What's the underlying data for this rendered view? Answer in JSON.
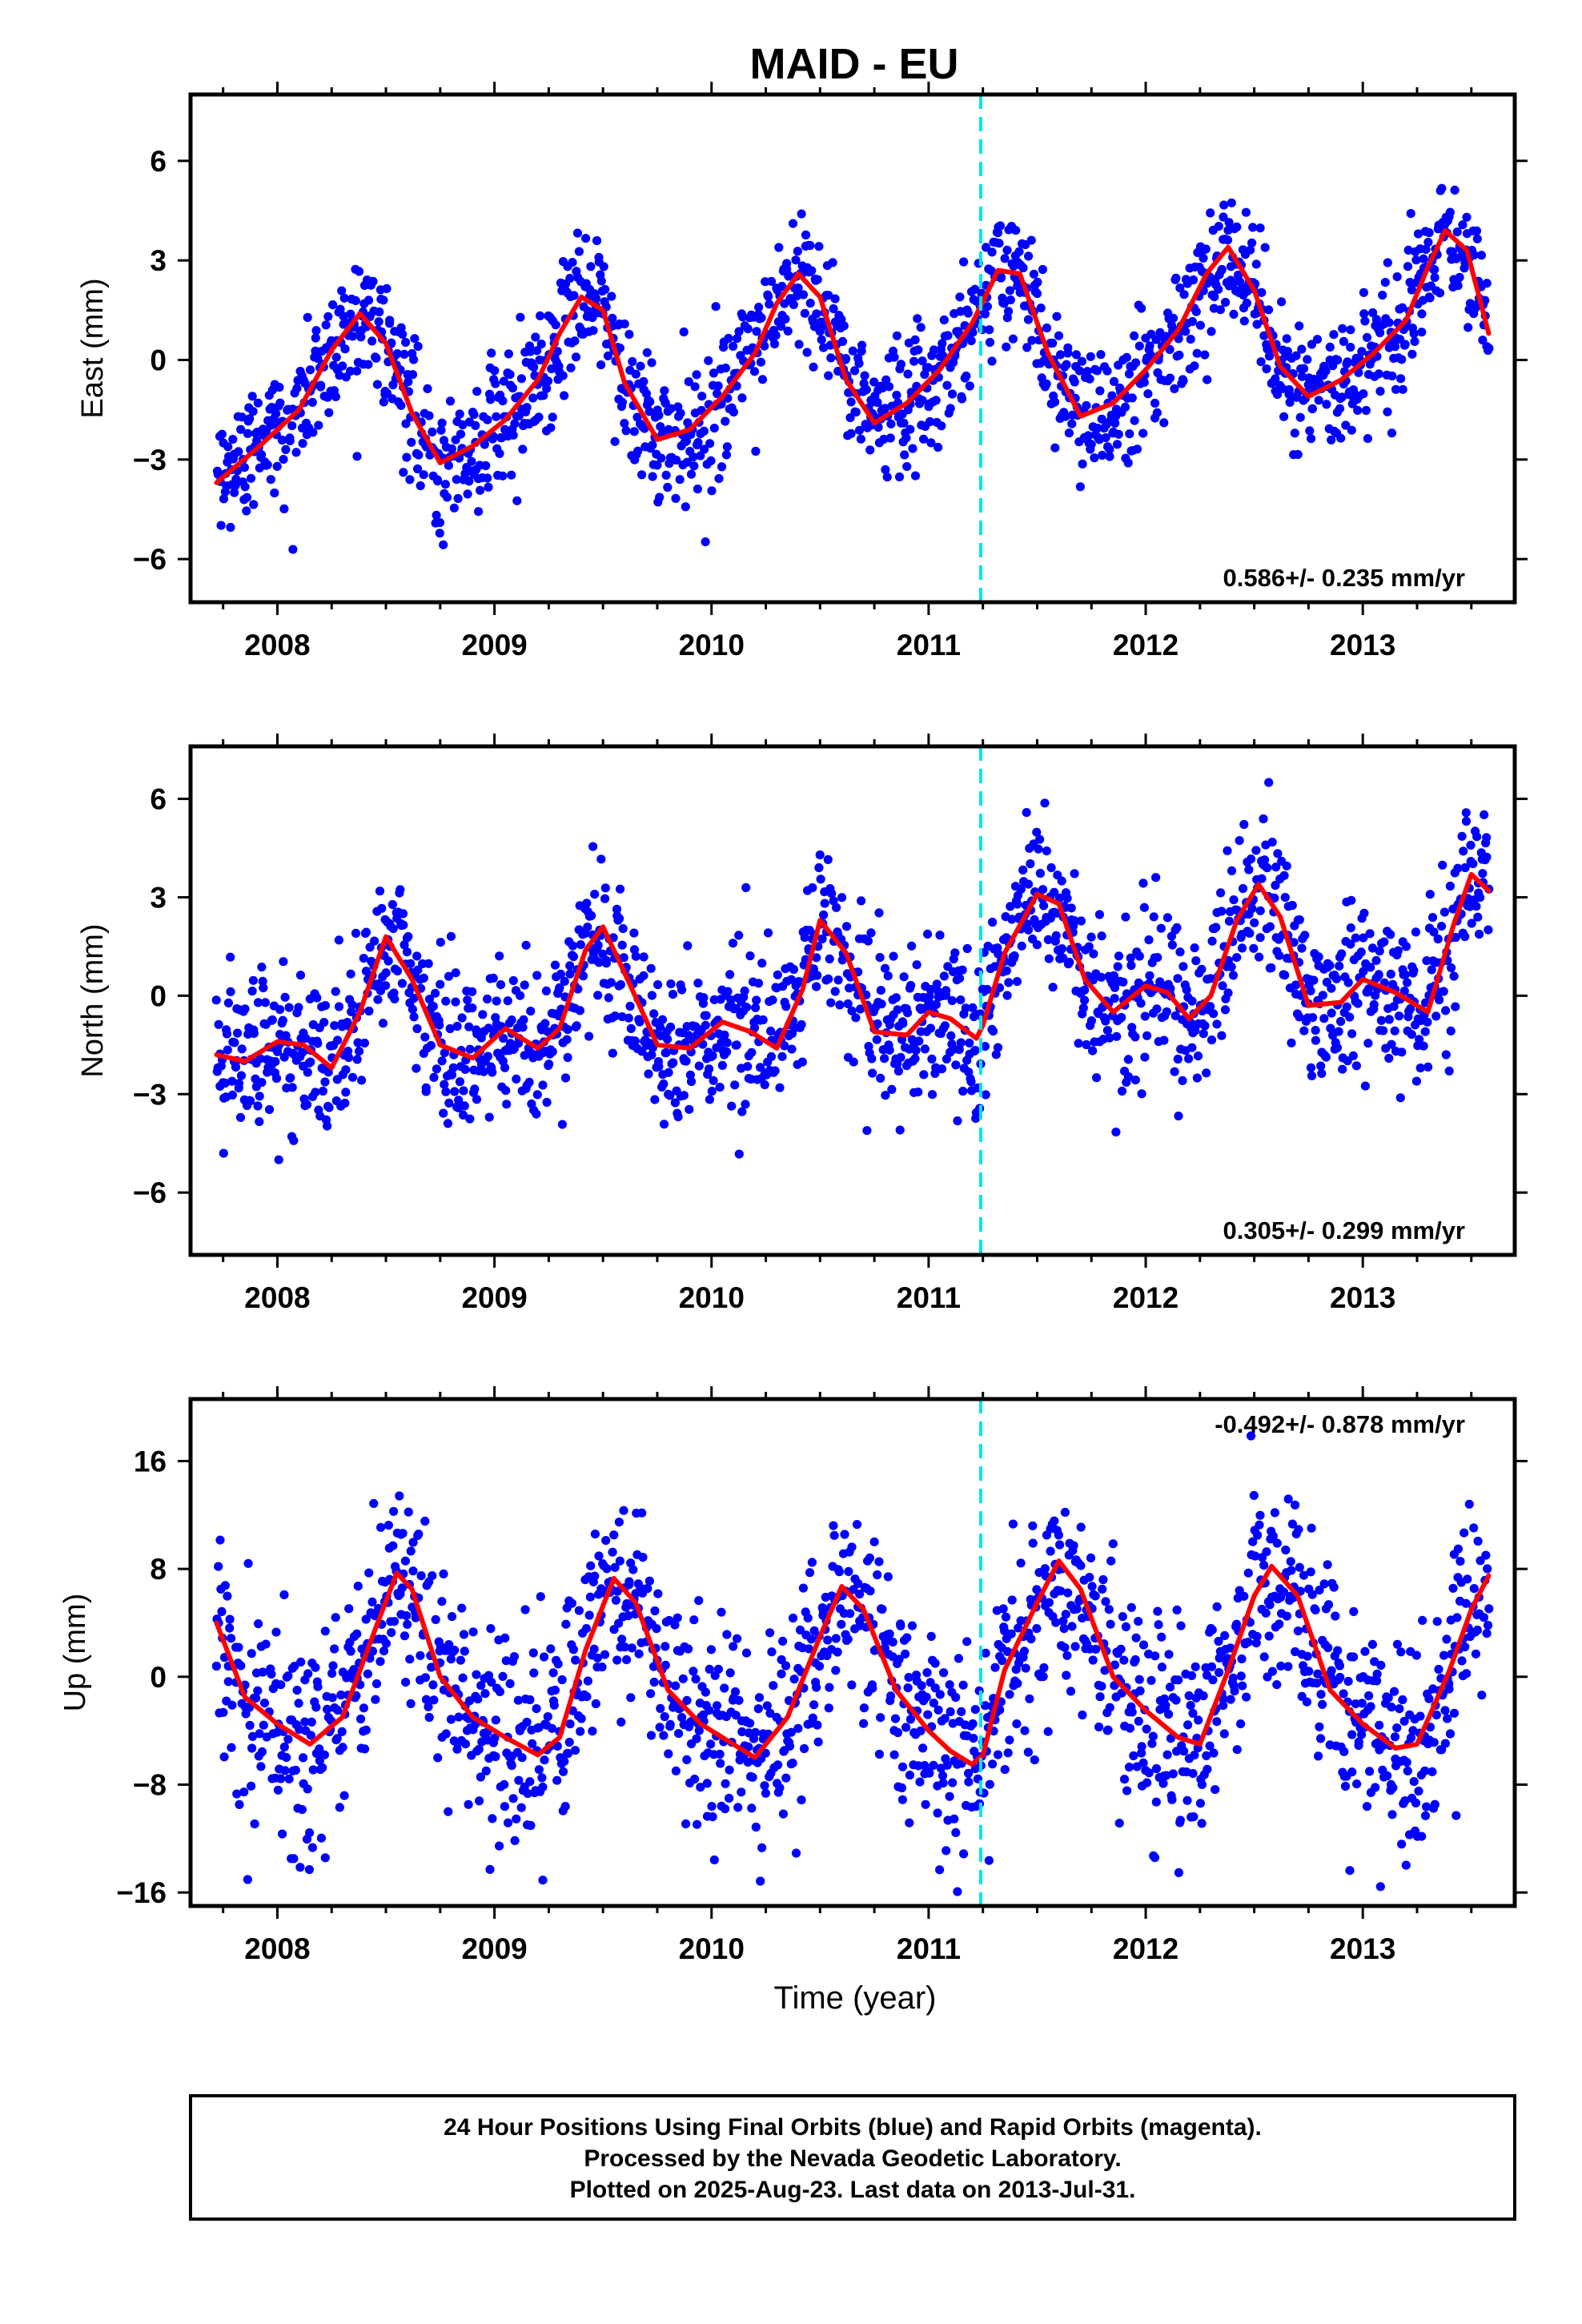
{
  "title": "MAID - EU",
  "x_label": "Time (year)",
  "colors": {
    "points": "#0000ff",
    "fit": "#ff0000",
    "event": "#00e5ee",
    "frame": "#000000"
  },
  "chart_data": [
    {
      "type": "scatter",
      "ylabel": "East (mm)",
      "xlim": [
        2007.6,
        2013.7
      ],
      "ylim": [
        -7.3,
        8.0
      ],
      "x_ticks": [
        2008,
        2009,
        2010,
        2011,
        2012,
        2013
      ],
      "y_ticks": [
        -6,
        -3,
        0,
        3,
        6
      ],
      "y_tick_labels": [
        "−6",
        "−3",
        "0",
        "3",
        "6"
      ],
      "event_line_x": 2011.24,
      "rate_label": "0.586+/- 0.235 mm/yr",
      "rate_position": "bottom-right",
      "series": [
        {
          "kind": "fit-curve",
          "x": [
            2007.72,
            2007.9,
            2008.1,
            2008.25,
            2008.38,
            2008.5,
            2008.62,
            2008.75,
            2008.9,
            2009.05,
            2009.2,
            2009.3,
            2009.4,
            2009.5,
            2009.6,
            2009.75,
            2009.9,
            2010.05,
            2010.2,
            2010.3,
            2010.4,
            2010.5,
            2010.62,
            2010.75,
            2010.9,
            2011.05,
            2011.2,
            2011.32,
            2011.42,
            2011.55,
            2011.7,
            2011.85,
            2012.0,
            2012.15,
            2012.28,
            2012.38,
            2012.5,
            2012.62,
            2012.75,
            2012.9,
            2013.05,
            2013.2,
            2013.3,
            2013.38,
            2013.48,
            2013.58
          ],
          "y": [
            -3.7,
            -2.7,
            -1.5,
            0.3,
            1.4,
            0.5,
            -1.6,
            -3.1,
            -2.6,
            -1.8,
            -0.6,
            0.8,
            1.9,
            1.5,
            -0.7,
            -2.4,
            -2.1,
            -1.1,
            0.2,
            1.7,
            2.6,
            1.9,
            -0.6,
            -1.9,
            -1.3,
            -0.3,
            1.1,
            2.7,
            2.6,
            0.2,
            -1.7,
            -1.3,
            -0.3,
            0.9,
            2.6,
            3.4,
            2.1,
            -0.2,
            -1.1,
            -0.6,
            0.2,
            1.2,
            2.8,
            3.9,
            3.3,
            0.8
          ]
        },
        {
          "kind": "daily-positions",
          "count": 1680,
          "x_range": [
            2007.72,
            2013.58
          ],
          "scatter_mm": 1.0
        }
      ]
    },
    {
      "type": "scatter",
      "ylabel": "North (mm)",
      "xlim": [
        2007.6,
        2013.7
      ],
      "ylim": [
        -7.9,
        7.6
      ],
      "x_ticks": [
        2008,
        2009,
        2010,
        2011,
        2012,
        2013
      ],
      "y_ticks": [
        -6,
        -3,
        0,
        3,
        6
      ],
      "y_tick_labels": [
        "−6",
        "−3",
        "0",
        "3",
        "6"
      ],
      "event_line_x": 2011.24,
      "rate_label": "0.305+/- 0.299 mm/yr",
      "rate_position": "bottom-right",
      "series": [
        {
          "kind": "fit-curve",
          "x": [
            2007.72,
            2007.85,
            2008.0,
            2008.12,
            2008.25,
            2008.38,
            2008.5,
            2008.62,
            2008.75,
            2008.9,
            2009.05,
            2009.2,
            2009.3,
            2009.42,
            2009.5,
            2009.62,
            2009.75,
            2009.9,
            2010.05,
            2010.18,
            2010.3,
            2010.42,
            2010.5,
            2010.62,
            2010.75,
            2010.9,
            2011.0,
            2011.1,
            2011.22,
            2011.25,
            2011.35,
            2011.5,
            2011.6,
            2011.72,
            2011.85,
            2012.0,
            2012.1,
            2012.2,
            2012.3,
            2012.42,
            2012.52,
            2012.62,
            2012.75,
            2012.9,
            2013.0,
            2013.15,
            2013.3,
            2013.42,
            2013.5,
            2013.58
          ],
          "y": [
            -1.8,
            -2.0,
            -1.4,
            -1.5,
            -2.2,
            -0.5,
            1.8,
            0.5,
            -1.5,
            -1.9,
            -1.0,
            -1.6,
            -1.0,
            1.4,
            2.1,
            0.4,
            -1.5,
            -1.6,
            -0.8,
            -1.1,
            -1.6,
            0.2,
            2.3,
            1.3,
            -1.1,
            -1.2,
            -0.5,
            -0.7,
            -1.3,
            -0.9,
            1.3,
            3.1,
            2.8,
            0.5,
            -0.5,
            0.3,
            0.1,
            -0.7,
            0.0,
            2.3,
            3.4,
            2.4,
            -0.3,
            -0.2,
            0.5,
            0.1,
            -0.5,
            2.2,
            3.7,
            3.2
          ]
        },
        {
          "kind": "daily-positions",
          "count": 1680,
          "x_range": [
            2007.72,
            2013.58
          ],
          "scatter_mm": 1.2
        }
      ]
    },
    {
      "type": "scatter",
      "ylabel": "Up (mm)",
      "xlim": [
        2007.6,
        2013.7
      ],
      "ylim": [
        -17,
        20.6
      ],
      "x_ticks": [
        2008,
        2009,
        2010,
        2011,
        2012,
        2013
      ],
      "y_ticks": [
        -16,
        -8,
        0,
        8,
        16
      ],
      "y_tick_labels": [
        "−16",
        "−8",
        "0",
        "8",
        "16"
      ],
      "event_line_x": 2011.24,
      "rate_label": "-0.492+/- 0.878 mm/yr",
      "rate_position": "top-right",
      "series": [
        {
          "kind": "fit-curve",
          "x": [
            2007.72,
            2007.85,
            2008.0,
            2008.15,
            2008.3,
            2008.45,
            2008.55,
            2008.62,
            2008.75,
            2008.9,
            2009.05,
            2009.2,
            2009.3,
            2009.42,
            2009.55,
            2009.65,
            2009.8,
            2009.95,
            2010.1,
            2010.2,
            2010.35,
            2010.5,
            2010.6,
            2010.7,
            2010.85,
            2011.0,
            2011.1,
            2011.2,
            2011.25,
            2011.35,
            2011.5,
            2011.6,
            2011.7,
            2011.85,
            2012.0,
            2012.15,
            2012.25,
            2012.38,
            2012.5,
            2012.58,
            2012.7,
            2012.85,
            2013.0,
            2013.15,
            2013.25,
            2013.4,
            2013.5,
            2013.58
          ],
          "y": [
            4.0,
            -1.5,
            -3.5,
            -5.0,
            -3.0,
            3.5,
            7.7,
            6.5,
            0.0,
            -3.0,
            -4.5,
            -5.8,
            -4.5,
            2.0,
            7.3,
            5.5,
            -1.0,
            -3.5,
            -5.0,
            -6.0,
            -3.0,
            3.0,
            6.7,
            5.0,
            -1.0,
            -4.0,
            -5.5,
            -6.5,
            -5.8,
            0.5,
            5.5,
            8.6,
            6.5,
            0.0,
            -2.5,
            -4.5,
            -5.0,
            0.5,
            6.0,
            8.2,
            6.0,
            -1.0,
            -3.5,
            -5.3,
            -5.0,
            0.5,
            5.0,
            7.5
          ]
        },
        {
          "kind": "daily-positions",
          "count": 1680,
          "x_range": [
            2007.72,
            2013.58
          ],
          "scatter_mm": 3.8
        }
      ]
    }
  ],
  "footer": {
    "lines": [
      "24 Hour Positions Using Final Orbits (blue) and Rapid Orbits (magenta).",
      "Processed by the Nevada Geodetic Laboratory.",
      "Plotted on 2025-Aug-23. Last data on 2013-Jul-31."
    ]
  }
}
